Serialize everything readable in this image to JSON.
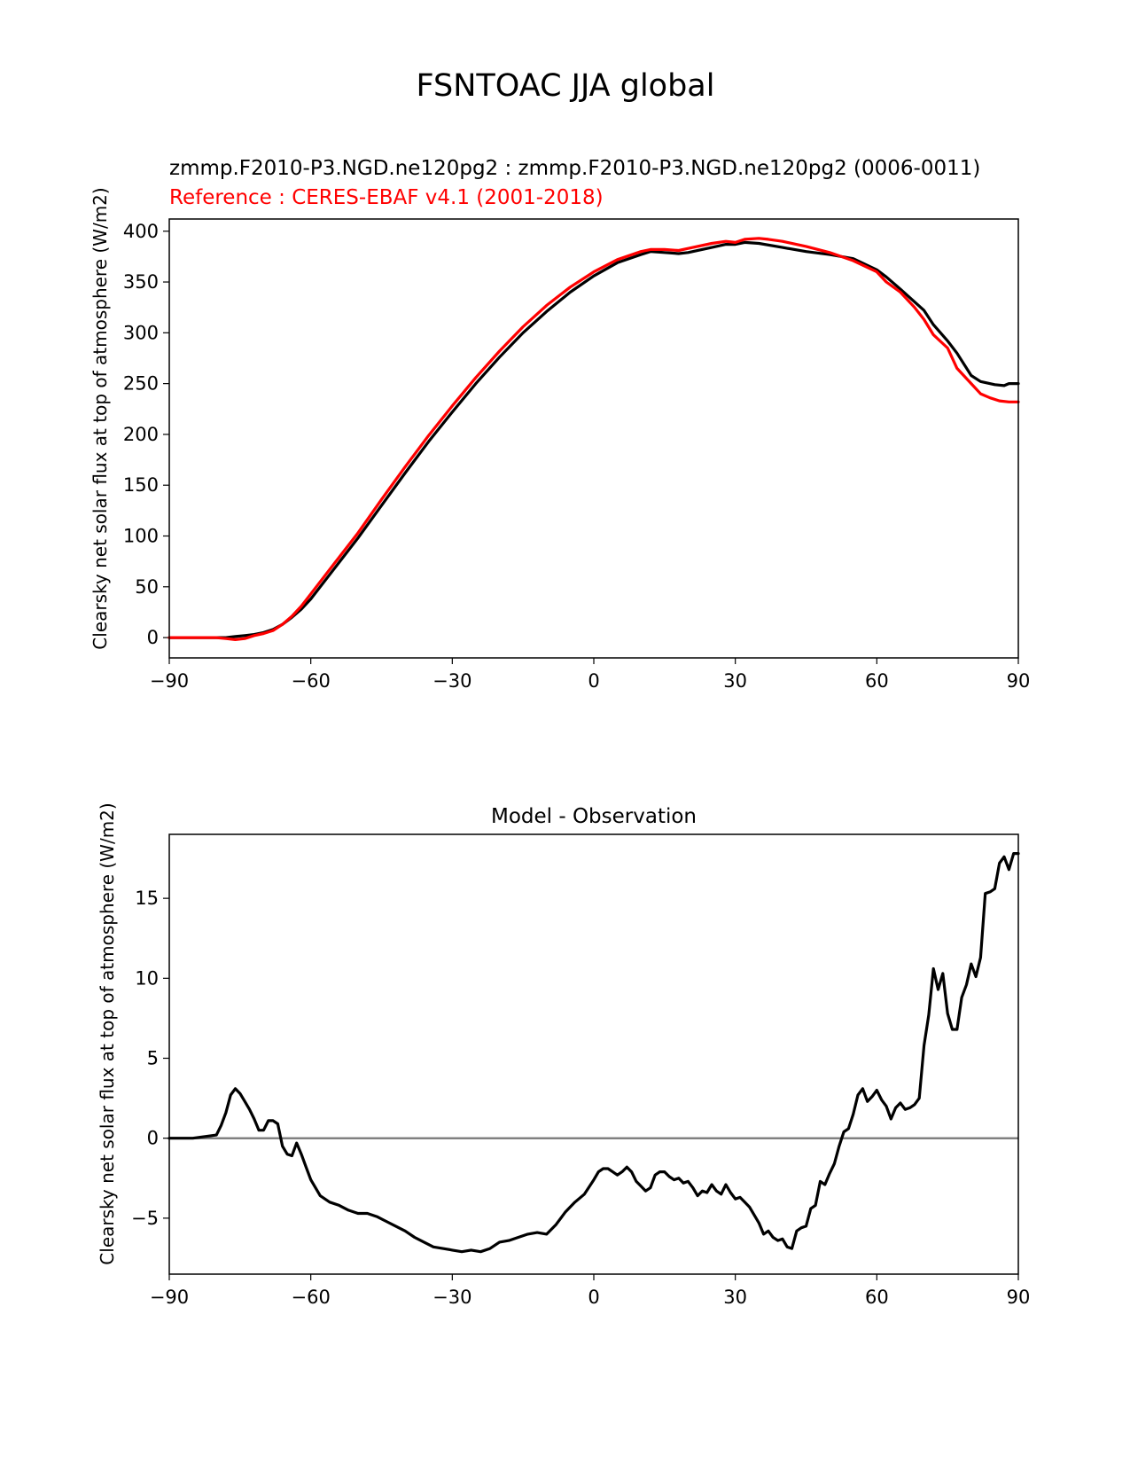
{
  "figure": {
    "suptitle": "FSNTOAC JJA global"
  },
  "chart_data": [
    {
      "type": "line",
      "title_test": "zmmp.F2010-P3.NGD.ne120pg2 : zmmp.F2010-P3.NGD.ne120pg2 (0006-0011)",
      "title_ref": "Reference : CERES-EBAF v4.1 (2001-2018)",
      "ylabel": "Clearsky net solar flux at top of atmosphere (W/m2)",
      "xlim": [
        -90,
        90
      ],
      "ylim": [
        -20,
        412
      ],
      "xticks": [
        -90,
        -60,
        -30,
        0,
        30,
        60,
        90
      ],
      "xtick_labels": [
        "−90",
        "−60",
        "−30",
        "0",
        "30",
        "60",
        "90"
      ],
      "yticks": [
        0,
        50,
        100,
        150,
        200,
        250,
        300,
        350,
        400
      ],
      "ytick_labels": [
        "0",
        "50",
        "100",
        "150",
        "200",
        "250",
        "300",
        "350",
        "400"
      ],
      "colors": {
        "test": "#000000",
        "ref": "#ff0000"
      },
      "series": [
        {
          "key": "test",
          "x": [
            -90,
            -85,
            -80,
            -78,
            -76,
            -74,
            -72,
            -70,
            -68,
            -66,
            -64,
            -62,
            -60,
            -55,
            -50,
            -45,
            -40,
            -35,
            -30,
            -25,
            -20,
            -15,
            -10,
            -5,
            0,
            5,
            10,
            12,
            15,
            18,
            20,
            25,
            28,
            30,
            32,
            35,
            40,
            45,
            50,
            55,
            60,
            62,
            65,
            70,
            72,
            75,
            77,
            80,
            82,
            85,
            87,
            88,
            90
          ],
          "y": [
            0,
            0,
            0,
            0,
            1,
            2,
            3,
            5,
            8,
            13,
            20,
            28,
            38,
            68,
            98,
            130,
            162,
            193,
            222,
            250,
            276,
            300,
            321,
            340,
            356,
            369,
            377,
            380,
            379,
            378,
            379,
            384,
            387,
            387,
            389,
            388,
            384,
            380,
            377,
            373,
            362,
            355,
            343,
            322,
            308,
            292,
            280,
            258,
            252,
            249,
            248,
            250,
            250
          ]
        },
        {
          "key": "ref",
          "x": [
            -90,
            -85,
            -80,
            -78,
            -76,
            -74,
            -72,
            -70,
            -68,
            -66,
            -64,
            -62,
            -60,
            -55,
            -50,
            -45,
            -40,
            -35,
            -30,
            -25,
            -20,
            -15,
            -10,
            -5,
            0,
            5,
            10,
            12,
            15,
            18,
            20,
            25,
            28,
            30,
            32,
            35,
            37,
            40,
            45,
            50,
            55,
            60,
            62,
            65,
            68,
            70,
            72,
            75,
            77,
            80,
            82,
            84,
            86,
            88,
            90
          ],
          "y": [
            0,
            0,
            0,
            -1,
            -2,
            -1,
            2,
            4,
            7,
            13,
            21,
            31,
            43,
            73,
            103,
            136,
            168,
            199,
            228,
            256,
            282,
            306,
            327,
            345,
            360,
            372,
            380,
            382,
            382,
            381,
            383,
            388,
            390,
            389,
            392,
            393,
            392,
            390,
            385,
            379,
            371,
            360,
            350,
            340,
            325,
            313,
            298,
            285,
            265,
            250,
            240,
            236,
            233,
            232,
            232
          ]
        }
      ]
    },
    {
      "type": "line",
      "title": "Model - Observation",
      "ylabel": "Clearsky net solar flux at top of atmosphere (W/m2)",
      "xlim": [
        -90,
        90
      ],
      "ylim": [
        -8.5,
        19
      ],
      "xticks": [
        -90,
        -60,
        -30,
        0,
        30,
        60,
        90
      ],
      "xtick_labels": [
        "−90",
        "−60",
        "−30",
        "0",
        "30",
        "60",
        "90"
      ],
      "yticks": [
        -5,
        0,
        5,
        10,
        15
      ],
      "ytick_labels": [
        "−5",
        "0",
        "5",
        "10",
        "15"
      ],
      "zero_line": {
        "value": 0,
        "color": "#808080"
      },
      "colors": {
        "diff": "#000000"
      },
      "series": [
        {
          "key": "diff",
          "x": [
            -90,
            -85,
            -80,
            -79,
            -78,
            -77,
            -76,
            -75,
            -74,
            -73,
            -72,
            -71,
            -70,
            -69,
            -68,
            -67,
            -66,
            -65,
            -64,
            -63,
            -62,
            -61,
            -60,
            -58,
            -56,
            -54,
            -52,
            -50,
            -48,
            -46,
            -44,
            -42,
            -40,
            -38,
            -36,
            -34,
            -32,
            -30,
            -28,
            -26,
            -24,
            -22,
            -20,
            -18,
            -16,
            -14,
            -12,
            -10,
            -8,
            -6,
            -4,
            -2,
            0,
            1,
            2,
            3,
            4,
            5,
            6,
            7,
            8,
            9,
            10,
            11,
            12,
            13,
            14,
            15,
            16,
            17,
            18,
            19,
            20,
            21,
            22,
            23,
            24,
            25,
            26,
            27,
            28,
            29,
            30,
            31,
            32,
            33,
            34,
            35,
            36,
            37,
            38,
            39,
            40,
            41,
            42,
            43,
            44,
            45,
            46,
            47,
            48,
            49,
            50,
            51,
            52,
            53,
            54,
            55,
            56,
            57,
            58,
            59,
            60,
            61,
            62,
            63,
            64,
            65,
            66,
            67,
            68,
            69,
            70,
            71,
            72,
            73,
            74,
            75,
            76,
            77,
            78,
            79,
            80,
            81,
            82,
            83,
            84,
            85,
            86,
            87,
            88,
            89,
            90
          ],
          "y": [
            0,
            0,
            0.2,
            0.8,
            1.6,
            2.7,
            3.1,
            2.8,
            2.3,
            1.8,
            1.2,
            0.5,
            0.5,
            1.1,
            1.1,
            0.9,
            -0.5,
            -1.0,
            -1.1,
            -0.3,
            -1.0,
            -1.8,
            -2.6,
            -3.6,
            -4.0,
            -4.2,
            -4.5,
            -4.7,
            -4.7,
            -4.9,
            -5.2,
            -5.5,
            -5.8,
            -6.2,
            -6.5,
            -6.8,
            -6.9,
            -7.0,
            -7.1,
            -7.0,
            -7.1,
            -6.9,
            -6.5,
            -6.4,
            -6.2,
            -6.0,
            -5.9,
            -6.0,
            -5.4,
            -4.6,
            -4.0,
            -3.5,
            -2.6,
            -2.1,
            -1.9,
            -1.9,
            -2.1,
            -2.3,
            -2.1,
            -1.8,
            -2.1,
            -2.7,
            -3.0,
            -3.3,
            -3.1,
            -2.3,
            -2.1,
            -2.1,
            -2.4,
            -2.6,
            -2.5,
            -2.8,
            -2.7,
            -3.1,
            -3.6,
            -3.3,
            -3.4,
            -2.9,
            -3.3,
            -3.5,
            -2.9,
            -3.4,
            -3.8,
            -3.7,
            -4.0,
            -4.3,
            -4.8,
            -5.3,
            -6.0,
            -5.8,
            -6.2,
            -6.4,
            -6.3,
            -6.8,
            -6.9,
            -5.8,
            -5.6,
            -5.5,
            -4.4,
            -4.2,
            -2.7,
            -2.9,
            -2.2,
            -1.6,
            -0.5,
            0.4,
            0.6,
            1.5,
            2.7,
            3.1,
            2.3,
            2.6,
            3.0,
            2.4,
            2.0,
            1.2,
            1.9,
            2.2,
            1.8,
            1.9,
            2.1,
            2.5,
            5.8,
            7.7,
            10.6,
            9.3,
            10.3,
            7.8,
            6.8,
            6.8,
            8.8,
            9.6,
            10.9,
            10.1,
            11.3,
            15.3,
            15.4,
            15.6,
            17.2,
            17.6,
            16.8,
            17.8,
            17.8
          ]
        }
      ]
    }
  ]
}
